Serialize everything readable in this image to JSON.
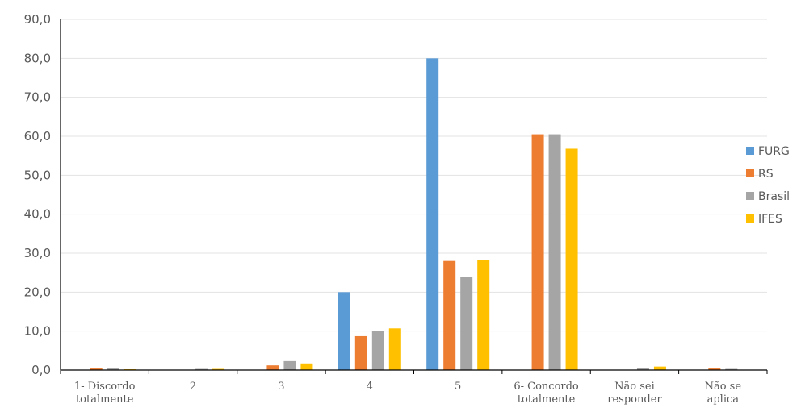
{
  "chart_data": {
    "type": "bar",
    "title": "",
    "xlabel": "",
    "ylabel": "",
    "ylim": [
      0,
      90
    ],
    "yticks": [
      "0,0",
      "10,0",
      "20,0",
      "30,0",
      "40,0",
      "50,0",
      "60,0",
      "70,0",
      "80,0",
      "90,0"
    ],
    "grid": true,
    "legend_position": "right",
    "categories": [
      [
        "1- Discordo",
        "totalmente"
      ],
      [
        "2"
      ],
      [
        "3"
      ],
      [
        "4"
      ],
      [
        "5"
      ],
      [
        "6- Concordo",
        "totalmente"
      ],
      [
        "Não sei",
        "responder"
      ],
      [
        "Não se",
        "aplica"
      ]
    ],
    "series": [
      {
        "name": "FURG",
        "color": "#5B9BD5",
        "values": [
          0,
          0,
          0,
          20.0,
          80.0,
          0,
          0,
          0
        ]
      },
      {
        "name": "RS",
        "color": "#ED7D31",
        "values": [
          0.4,
          0,
          1.2,
          8.7,
          28.0,
          60.5,
          0,
          0.4
        ]
      },
      {
        "name": "Brasil",
        "color": "#A5A5A5",
        "values": [
          0.4,
          0.3,
          2.3,
          10.0,
          24.0,
          60.5,
          0.6,
          0.3
        ]
      },
      {
        "name": "IFES",
        "color": "#FFC000",
        "values": [
          0.2,
          0.3,
          1.7,
          10.7,
          28.2,
          56.8,
          0.9,
          0
        ]
      }
    ]
  }
}
